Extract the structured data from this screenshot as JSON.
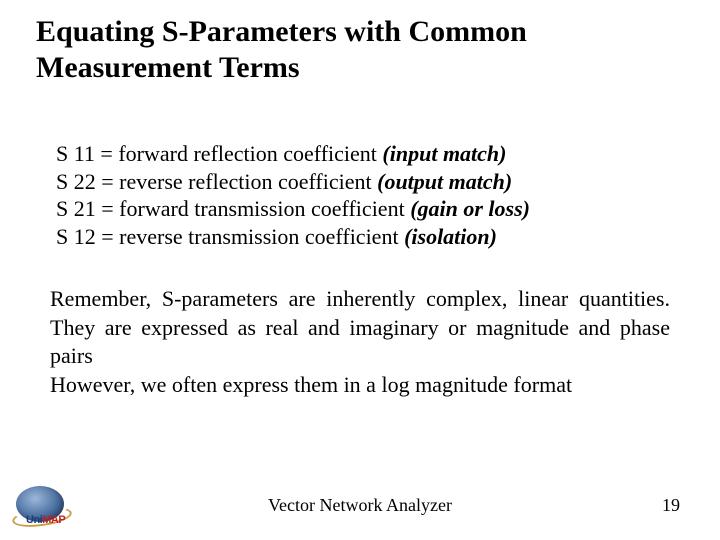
{
  "colors": {
    "background": "#ffffff",
    "text": "#000000",
    "logo_ellipse_light": "#9db7d8",
    "logo_ellipse_mid": "#4a6fa0",
    "logo_ellipse_dark": "#2a3f66",
    "logo_ring": "#c9a04a",
    "logo_uni": "#1a3e78",
    "logo_map": "#c02020"
  },
  "fonts": {
    "family": "Times New Roman",
    "title_size_pt": 30,
    "title_weight": "bold",
    "body_size_pt": 22,
    "footer_size_pt": 18
  },
  "title": "Equating S-Parameters with Common Measurement Terms",
  "defs": [
    {
      "param": "S 11",
      "desc": "forward reflection coefficient",
      "note": "(input match)"
    },
    {
      "param": "S 22",
      "desc": "reverse reflection coefficient",
      "note": "(output match)"
    },
    {
      "param": "S 21",
      "desc": "forward transmission coefficient",
      "note": "(gain or loss)"
    },
    {
      "param": "S 12",
      "desc": "reverse transmission coefficient",
      "note": "(isolation)"
    }
  ],
  "eq": " = ",
  "para1": "Remember, S-parameters are inherently complex, linear quantities. They are expressed as real and imaginary or magnitude and phase pairs",
  "para2": "However, we often express them in a log magnitude format",
  "footer": {
    "center": "Vector Network Analyzer",
    "page": "19"
  },
  "logo": {
    "uni": "Uni",
    "map": "MAP"
  }
}
